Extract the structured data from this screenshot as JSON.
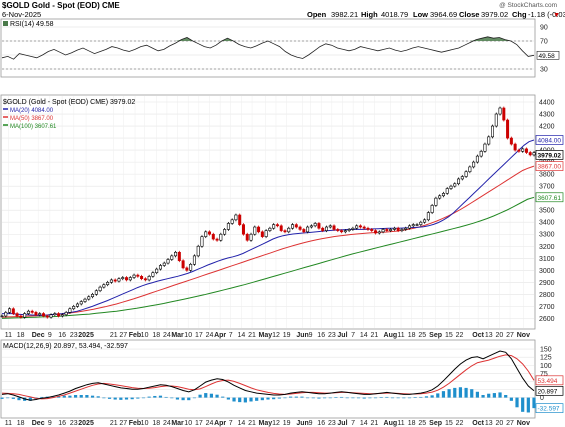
{
  "header": {
    "symbol_line": "$GOLD Gold - Spot (EOD) CME",
    "date": "6-Nov-2025",
    "open_label": "Open",
    "open": "3982.21",
    "high_label": "High",
    "high": "4018.79",
    "low_label": "Low",
    "low": "3964.69",
    "close_label": "Close",
    "close": "3979.02",
    "chg_label": "Chg",
    "chg": "-1.18 (-0.03%)",
    "watermark": "@ StockCharts.com"
  },
  "colors": {
    "price_up": "#000000",
    "price_down": "#cc0000",
    "ma20": "#2222aa",
    "ma50": "#dd3333",
    "ma100": "#228822",
    "rsi_fill": "#4a7a4a",
    "macd_hist": "#1f8fcc",
    "macd_signal": "#dd3333",
    "macd_line": "#000000"
  },
  "chart_data": [
    {
      "type": "line",
      "panel": "rsi",
      "legend": "RSI(14) 49.58",
      "ylim": [
        20,
        100
      ],
      "yticks": [
        90,
        70,
        50,
        30
      ],
      "reference_levels": [
        70,
        30
      ],
      "last_value": "49.58",
      "values": [
        46,
        48,
        44,
        52,
        50,
        48,
        46,
        50,
        55,
        58,
        54,
        50,
        53,
        57,
        60,
        56,
        52,
        55,
        58,
        62,
        60,
        57,
        55,
        58,
        62,
        64,
        60,
        56,
        58,
        63,
        67,
        72,
        75,
        70,
        66,
        62,
        60,
        64,
        70,
        74,
        70,
        65,
        62,
        60,
        63,
        67,
        70,
        66,
        62,
        55,
        50,
        47,
        45,
        50,
        56,
        62,
        66,
        64,
        60,
        58,
        56,
        58,
        62,
        60,
        58,
        56,
        58,
        60,
        57,
        55,
        57,
        60,
        62,
        60,
        58,
        56,
        54,
        56,
        58,
        60,
        64,
        68,
        72,
        74,
        76,
        74,
        75,
        72,
        70,
        65,
        56,
        48,
        49.58
      ]
    },
    {
      "type": "line",
      "panel": "price",
      "legend": [
        "$GOLD (Gold - Spot (EOD) CME) 3979.02",
        "MA(20) 4084.00",
        "MA(50) 3867.00",
        "MA(100) 3607.61"
      ],
      "series_names": [
        "$GOLD",
        "MA(20) 4084.00",
        "MA(50) 3867.00",
        "MA(100) 3607.61"
      ],
      "ylim": [
        2520,
        4450
      ],
      "yticks": [
        4400,
        4300,
        4200,
        4100,
        4000,
        3900,
        3800,
        3700,
        3600,
        3500,
        3400,
        3300,
        3200,
        3100,
        3000,
        2900,
        2800,
        2700,
        2600
      ],
      "price_labels": {
        "ma20": "4084.00",
        "close": "3979.02",
        "ma50": "3867.00",
        "ma100": "3607.61"
      },
      "x_labels": [
        "11",
        "18",
        "Dec",
        "9",
        "16",
        "23",
        "2025",
        "21",
        "27",
        "Feb",
        "10",
        "18",
        "24",
        "Mar",
        "10",
        "17",
        "24",
        "Apr",
        "7",
        "14",
        "21",
        "May",
        "12",
        "19",
        "Jun",
        "9",
        "16",
        "23",
        "Jul",
        "7",
        "14",
        "21",
        "Aug",
        "11",
        "18",
        "25",
        "Sep",
        "15",
        "22",
        "Oct",
        "13",
        "20",
        "27",
        "Nov"
      ],
      "x_label_pos": [
        0.012,
        0.035,
        0.068,
        0.09,
        0.113,
        0.135,
        0.158,
        0.21,
        0.228,
        0.25,
        0.268,
        0.29,
        0.31,
        0.33,
        0.35,
        0.37,
        0.39,
        0.41,
        0.43,
        0.45,
        0.47,
        0.495,
        0.515,
        0.535,
        0.565,
        0.58,
        0.6,
        0.62,
        0.64,
        0.66,
        0.68,
        0.7,
        0.73,
        0.75,
        0.77,
        0.79,
        0.815,
        0.84,
        0.86,
        0.895,
        0.915,
        0.935,
        0.955,
        0.98
      ],
      "close": [
        2620,
        2650,
        2680,
        2640,
        2620,
        2610,
        2640,
        2660,
        2650,
        2630,
        2640,
        2620,
        2610,
        2630,
        2640,
        2620,
        2630,
        2650,
        2680,
        2700,
        2720,
        2740,
        2760,
        2780,
        2800,
        2830,
        2860,
        2880,
        2900,
        2920,
        2910,
        2930,
        2940,
        2920,
        2940,
        2960,
        2950,
        2930,
        2920,
        2950,
        2980,
        3010,
        3040,
        3060,
        3090,
        3120,
        3150,
        3080,
        3020,
        3000,
        3050,
        3120,
        3200,
        3280,
        3320,
        3300,
        3260,
        3250,
        3300,
        3340,
        3390,
        3420,
        3460,
        3380,
        3300,
        3250,
        3300,
        3360,
        3320,
        3280,
        3330,
        3350,
        3380,
        3370,
        3330,
        3320,
        3350,
        3380,
        3360,
        3340,
        3320,
        3360,
        3370,
        3390,
        3350,
        3330,
        3360,
        3370,
        3340,
        3330,
        3320,
        3330,
        3340,
        3350,
        3370,
        3360,
        3350,
        3340,
        3330,
        3310,
        3320,
        3340,
        3330,
        3340,
        3350,
        3330,
        3340,
        3350,
        3370,
        3380,
        3380,
        3400,
        3420,
        3480,
        3540,
        3600,
        3620,
        3640,
        3680,
        3700,
        3720,
        3760,
        3780,
        3820,
        3860,
        3900,
        3950,
        3990,
        4050,
        4110,
        4200,
        4300,
        4350,
        4250,
        4100,
        4050,
        4000,
        3990,
        4010,
        3980,
        3960,
        3979.02
      ],
      "ma20": [
        2640,
        2640,
        2640,
        2635,
        2632,
        2630,
        2628,
        2626,
        2626,
        2628,
        2632,
        2636,
        2640,
        2646,
        2652,
        2660,
        2672,
        2686,
        2700,
        2716,
        2732,
        2748,
        2766,
        2784,
        2802,
        2820,
        2838,
        2856,
        2872,
        2886,
        2898,
        2910,
        2920,
        2930,
        2940,
        2950,
        2962,
        2974,
        2990,
        3008,
        3026,
        3044,
        3060,
        3076,
        3090,
        3102,
        3112,
        3124,
        3140,
        3160,
        3180,
        3200,
        3220,
        3240,
        3260,
        3276,
        3288,
        3296,
        3302,
        3306,
        3310,
        3314,
        3318,
        3322,
        3326,
        3330,
        3334,
        3336,
        3338,
        3340,
        3340,
        3340,
        3340,
        3342,
        3344,
        3346,
        3348,
        3350,
        3350,
        3350,
        3352,
        3354,
        3356,
        3358,
        3362,
        3370,
        3382,
        3398,
        3420,
        3446,
        3480,
        3520,
        3560,
        3600,
        3640,
        3680,
        3720,
        3760,
        3800,
        3840,
        3880,
        3920,
        3960,
        4000,
        4040,
        4070,
        4084
      ],
      "ma50": [
        2610,
        2612,
        2614,
        2616,
        2618,
        2620,
        2622,
        2624,
        2628,
        2632,
        2636,
        2640,
        2646,
        2652,
        2660,
        2668,
        2676,
        2686,
        2696,
        2708,
        2720,
        2734,
        2748,
        2762,
        2778,
        2794,
        2810,
        2826,
        2842,
        2858,
        2874,
        2890,
        2906,
        2922,
        2938,
        2954,
        2970,
        2986,
        3002,
        3018,
        3034,
        3050,
        3066,
        3082,
        3098,
        3114,
        3130,
        3146,
        3162,
        3178,
        3192,
        3206,
        3220,
        3232,
        3244,
        3254,
        3264,
        3272,
        3280,
        3286,
        3292,
        3298,
        3302,
        3306,
        3310,
        3314,
        3316,
        3318,
        3322,
        3326,
        3332,
        3340,
        3350,
        3362,
        3376,
        3392,
        3410,
        3430,
        3452,
        3476,
        3502,
        3530,
        3560,
        3590,
        3620,
        3650,
        3680,
        3710,
        3740,
        3770,
        3800,
        3830,
        3850,
        3867
      ],
      "ma100": [
        2600,
        2602,
        2604,
        2606,
        2608,
        2610,
        2612,
        2614,
        2616,
        2620,
        2624,
        2628,
        2632,
        2636,
        2642,
        2648,
        2654,
        2660,
        2668,
        2676,
        2684,
        2694,
        2704,
        2714,
        2724,
        2736,
        2748,
        2760,
        2772,
        2784,
        2796,
        2810,
        2824,
        2838,
        2852,
        2866,
        2880,
        2896,
        2912,
        2928,
        2944,
        2960,
        2976,
        2992,
        3008,
        3024,
        3040,
        3056,
        3072,
        3088,
        3104,
        3120,
        3136,
        3150,
        3164,
        3178,
        3192,
        3206,
        3220,
        3234,
        3248,
        3262,
        3276,
        3290,
        3304,
        3318,
        3332,
        3346,
        3360,
        3376,
        3392,
        3410,
        3430,
        3452,
        3476,
        3502,
        3530,
        3560,
        3590,
        3607.61
      ]
    },
    {
      "type": "line",
      "panel": "macd",
      "legend": "MACD(12,26,9) 20.897, 53.494, -32.597",
      "ylim": [
        -60,
        175
      ],
      "yticks": [
        150,
        125,
        100,
        75,
        50,
        25,
        0
      ],
      "price_labels": {
        "signal": "53.494",
        "macd": "20.897",
        "hist": "-32.597"
      },
      "series_names": [
        "MACD(12,26,9) 20.897",
        "53.494",
        "-32.597"
      ],
      "macd": [
        10,
        12,
        8,
        2,
        -4,
        -8,
        -6,
        -2,
        0,
        4,
        8,
        14,
        20,
        28,
        34,
        40,
        44,
        46,
        42,
        38,
        34,
        30,
        28,
        26,
        26,
        28,
        32,
        36,
        40,
        38,
        34,
        28,
        22,
        18,
        24,
        36,
        48,
        54,
        58,
        56,
        48,
        38,
        30,
        22,
        18,
        14,
        12,
        10,
        8,
        8,
        10,
        14,
        16,
        18,
        16,
        14,
        12,
        12,
        14,
        16,
        18,
        16,
        14,
        12,
        10,
        10,
        12,
        14,
        16,
        14,
        12,
        10,
        10,
        12,
        14,
        18,
        24,
        36,
        52,
        70,
        88,
        104,
        116,
        124,
        126,
        120,
        128,
        136,
        144,
        140,
        120,
        90,
        60,
        36,
        20.897
      ],
      "signal": [
        14,
        13,
        12,
        10,
        6,
        2,
        -2,
        -4,
        -3,
        0,
        4,
        8,
        14,
        20,
        26,
        32,
        38,
        42,
        44,
        42,
        40,
        37,
        34,
        31,
        29,
        28,
        29,
        31,
        34,
        36,
        36,
        34,
        30,
        26,
        24,
        27,
        34,
        42,
        49,
        53,
        54,
        50,
        44,
        37,
        30,
        24,
        20,
        16,
        13,
        11,
        10,
        11,
        13,
        15,
        16,
        16,
        15,
        14,
        14,
        15,
        16,
        16,
        15,
        14,
        13,
        12,
        12,
        13,
        14,
        14,
        13,
        12,
        11,
        11,
        12,
        14,
        17,
        23,
        32,
        44,
        58,
        72,
        86,
        98,
        108,
        112,
        116,
        122,
        128,
        132,
        130,
        120,
        104,
        82,
        53.494
      ],
      "hist": [
        -4,
        -1,
        -4,
        -8,
        -10,
        -10,
        -4,
        2,
        3,
        4,
        4,
        6,
        6,
        8,
        8,
        8,
        6,
        4,
        -2,
        -4,
        -6,
        -7,
        -6,
        -5,
        -3,
        0,
        3,
        5,
        6,
        2,
        -2,
        -6,
        -8,
        -8,
        0,
        9,
        14,
        12,
        9,
        3,
        -6,
        -12,
        -14,
        -15,
        -12,
        -10,
        -8,
        -6,
        -5,
        -3,
        0,
        3,
        3,
        3,
        0,
        -2,
        -3,
        -2,
        0,
        1,
        2,
        0,
        -1,
        -2,
        -3,
        -2,
        0,
        1,
        2,
        0,
        -1,
        -2,
        -1,
        1,
        2,
        4,
        7,
        13,
        20,
        26,
        30,
        32,
        30,
        26,
        18,
        8,
        12,
        14,
        16,
        8,
        -10,
        -30,
        -44,
        -46,
        -32.597
      ]
    }
  ]
}
